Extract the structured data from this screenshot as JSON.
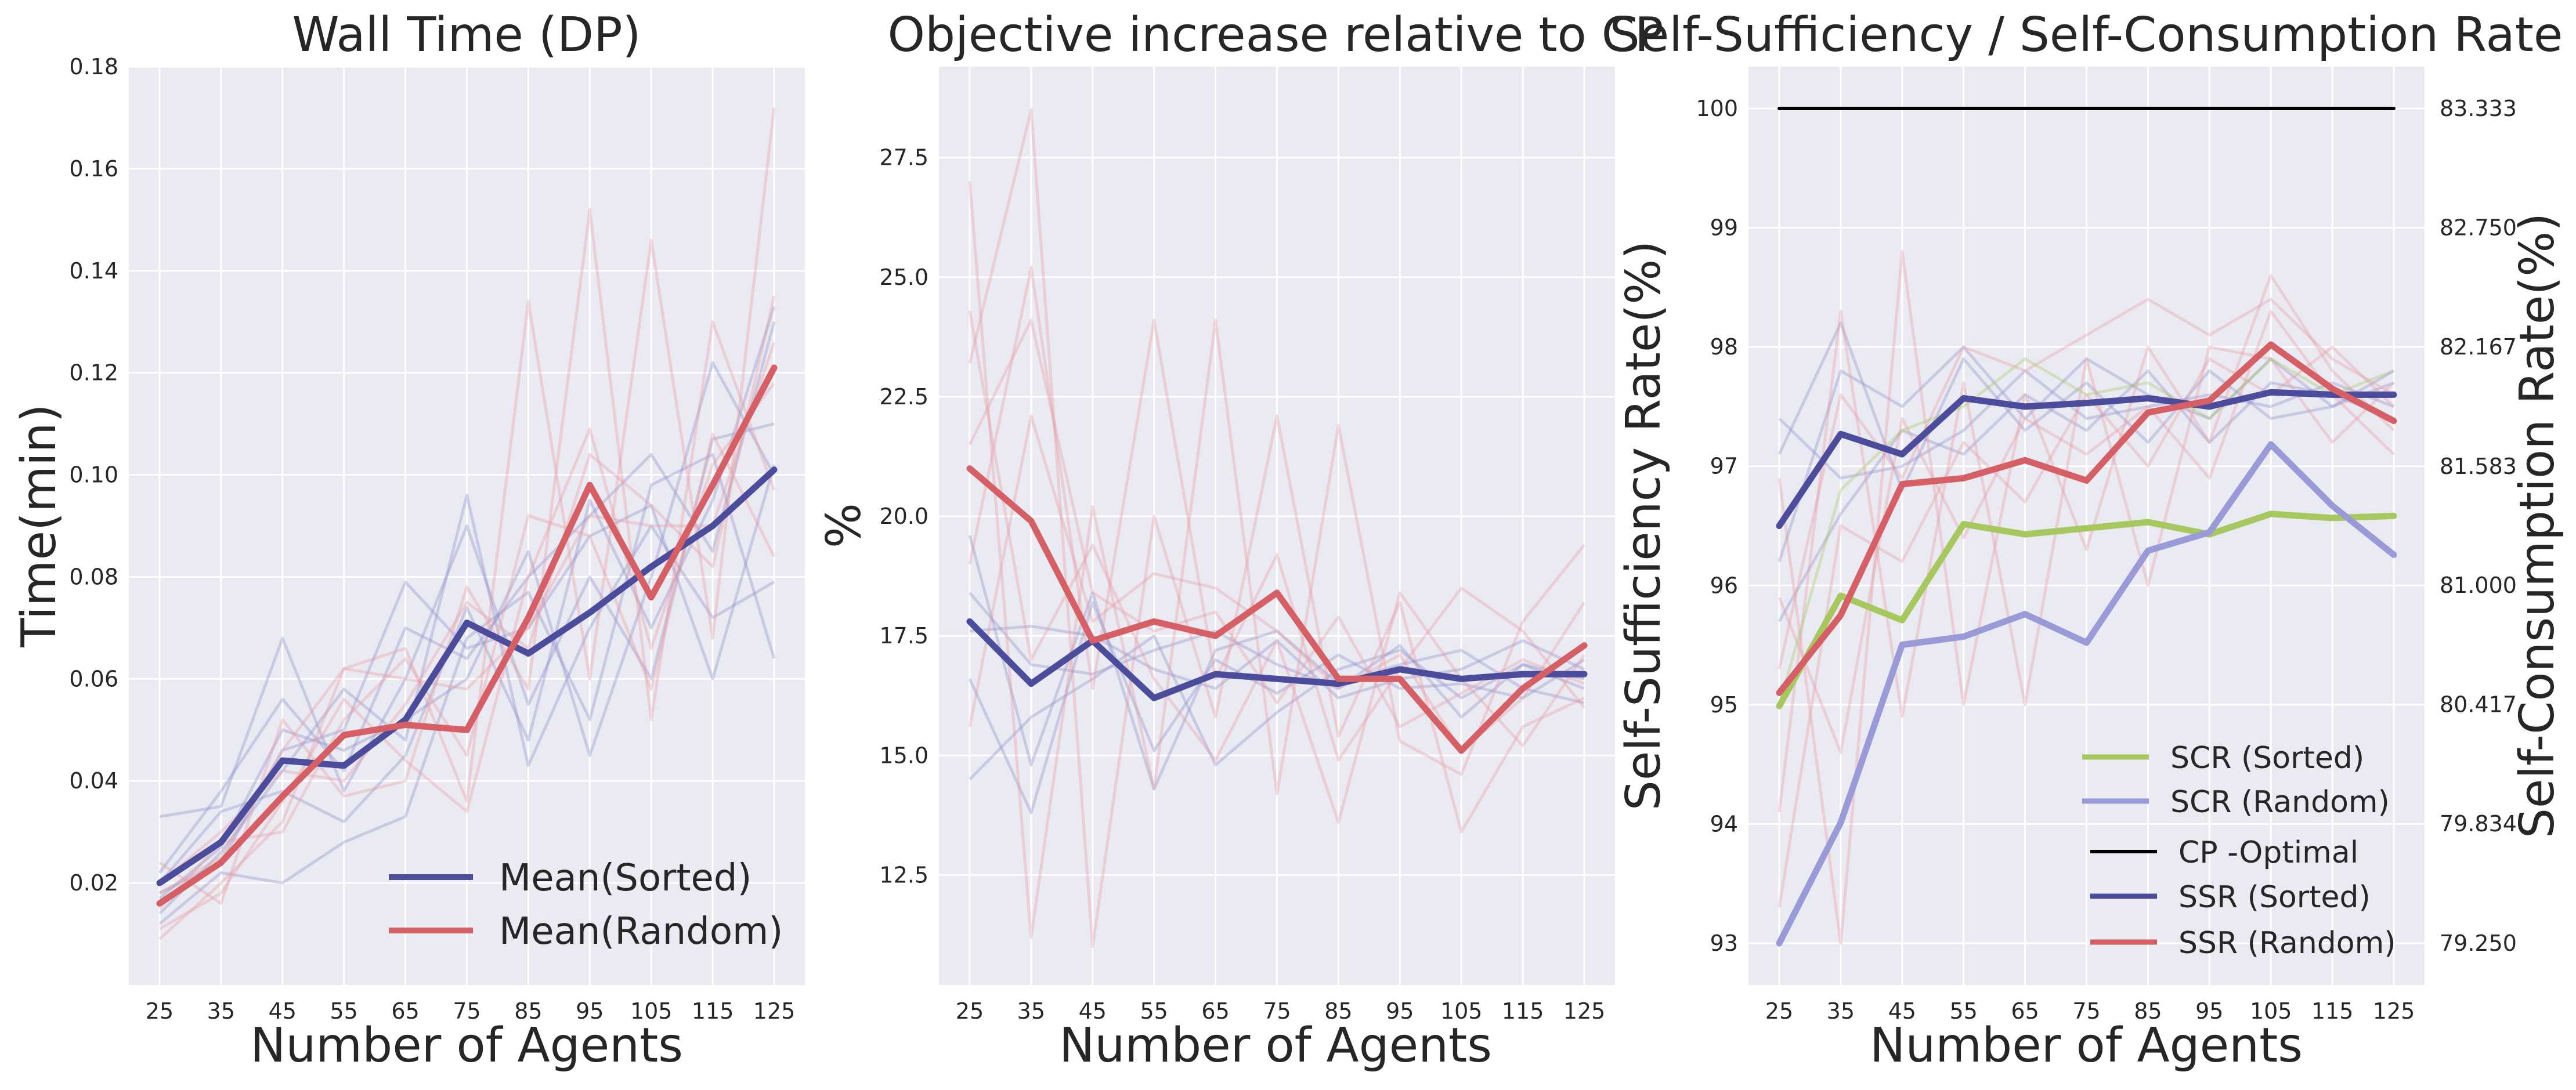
{
  "chart_data": [
    {
      "type": "line",
      "title": "Wall Time (DP)",
      "xlabel": "Number of Agents",
      "ylabel": "Time(min)",
      "x": [
        25,
        35,
        45,
        55,
        65,
        75,
        85,
        95,
        105,
        115,
        125
      ],
      "ylim": [
        0.0,
        0.18
      ],
      "yticks": [
        0.02,
        0.04,
        0.06,
        0.08,
        0.1,
        0.12,
        0.14,
        0.16,
        0.18
      ],
      "ytick_labels": [
        "0.02",
        "0.04",
        "0.06",
        "0.08",
        "0.10",
        "0.12",
        "0.14",
        "0.16",
        "0.18"
      ],
      "grid": true,
      "legend_position": "lower-right",
      "series": [
        {
          "name": "Mean(Sorted)",
          "color": "#4c4c9d",
          "values": [
            0.02,
            0.028,
            0.044,
            0.043,
            0.052,
            0.071,
            0.065,
            0.073,
            0.082,
            0.09,
            0.101
          ]
        },
        {
          "name": "Mean(Random)",
          "color": "#d65f65",
          "values": [
            0.016,
            0.024,
            0.037,
            0.049,
            0.051,
            0.05,
            0.072,
            0.098,
            0.076,
            0.098,
            0.121
          ]
        }
      ],
      "runs": [
        {
          "color": "#8c8cc8",
          "values": [
            0.033,
            0.035,
            0.068,
            0.038,
            0.06,
            0.09,
            0.055,
            0.08,
            0.06,
            0.107,
            0.11
          ]
        },
        {
          "color": "#8c8cc8",
          "values": [
            0.022,
            0.038,
            0.056,
            0.042,
            0.07,
            0.064,
            0.08,
            0.092,
            0.104,
            0.085,
            0.13
          ]
        },
        {
          "color": "#8c8cc8",
          "values": [
            0.014,
            0.026,
            0.042,
            0.058,
            0.048,
            0.096,
            0.043,
            0.07,
            0.09,
            0.072,
            0.079
          ]
        },
        {
          "color": "#8c8cc8",
          "values": [
            0.018,
            0.024,
            0.046,
            0.05,
            0.079,
            0.066,
            0.07,
            0.088,
            0.094,
            0.06,
            0.102
          ]
        },
        {
          "color": "#8c8cc8",
          "values": [
            0.012,
            0.022,
            0.02,
            0.028,
            0.033,
            0.068,
            0.077,
            0.052,
            0.098,
            0.104,
            0.064
          ]
        },
        {
          "color": "#8c8cc8",
          "values": [
            0.017,
            0.027,
            0.05,
            0.046,
            0.052,
            0.06,
            0.085,
            0.045,
            0.08,
            0.122,
            0.1
          ]
        },
        {
          "color": "#8c8cc8",
          "values": [
            0.02,
            0.034,
            0.038,
            0.032,
            0.045,
            0.074,
            0.048,
            0.095,
            0.07,
            0.095,
            0.133
          ]
        },
        {
          "color": "#e89aa4",
          "values": [
            0.009,
            0.02,
            0.032,
            0.062,
            0.066,
            0.036,
            0.134,
            0.06,
            0.146,
            0.068,
            0.172
          ]
        },
        {
          "color": "#e89aa4",
          "values": [
            0.024,
            0.016,
            0.052,
            0.037,
            0.04,
            0.078,
            0.058,
            0.152,
            0.052,
            0.13,
            0.097
          ]
        },
        {
          "color": "#e89aa4",
          "values": [
            0.015,
            0.028,
            0.03,
            0.052,
            0.064,
            0.045,
            0.092,
            0.088,
            0.058,
            0.108,
            0.084
          ]
        },
        {
          "color": "#e89aa4",
          "values": [
            0.02,
            0.03,
            0.042,
            0.04,
            0.055,
            0.075,
            0.066,
            0.104,
            0.094,
            0.082,
            0.135
          ]
        },
        {
          "color": "#e89aa4",
          "values": [
            0.011,
            0.018,
            0.036,
            0.056,
            0.044,
            0.034,
            0.08,
            0.109,
            0.066,
            0.102,
            0.118
          ]
        },
        {
          "color": "#e89aa4",
          "values": [
            0.018,
            0.025,
            0.046,
            0.062,
            0.06,
            0.058,
            0.07,
            0.092,
            0.09,
            0.09,
            0.126
          ]
        }
      ]
    },
    {
      "type": "line",
      "title": "Objective increase relative to CP",
      "xlabel": "Number of Agents",
      "ylabel": "%",
      "x": [
        25,
        35,
        45,
        55,
        65,
        75,
        85,
        95,
        105,
        115,
        125
      ],
      "ylim": [
        10.2,
        29.4
      ],
      "yticks": [
        12.5,
        15.0,
        17.5,
        20.0,
        22.5,
        25.0,
        27.5
      ],
      "ytick_labels": [
        "12.5",
        "15.0",
        "17.5",
        "20.0",
        "22.5",
        "25.0",
        "27.5"
      ],
      "grid": true,
      "series": [
        {
          "name": "Mean(Sorted)",
          "color": "#4c4c9d",
          "values": [
            17.8,
            16.5,
            17.4,
            16.2,
            16.7,
            16.6,
            16.5,
            16.8,
            16.6,
            16.7,
            16.7
          ]
        },
        {
          "name": "Mean(Random)",
          "color": "#d65f65",
          "values": [
            21.0,
            19.9,
            17.4,
            17.8,
            17.5,
            18.4,
            16.6,
            16.6,
            15.1,
            16.4,
            17.3
          ]
        }
      ],
      "runs": [
        {
          "color": "#8c8cc8",
          "values": [
            19.6,
            14.8,
            18.4,
            14.3,
            17.2,
            17.6,
            16.5,
            16.9,
            17.2,
            16.4,
            16.1
          ]
        },
        {
          "color": "#8c8cc8",
          "values": [
            14.5,
            15.8,
            16.6,
            17.5,
            14.8,
            15.9,
            16.8,
            17.2,
            16.2,
            16.9,
            16.6
          ]
        },
        {
          "color": "#8c8cc8",
          "values": [
            17.6,
            17.7,
            17.5,
            16.8,
            16.4,
            17.4,
            16.2,
            16.6,
            16.8,
            17.4,
            16.8
          ]
        },
        {
          "color": "#8c8cc8",
          "values": [
            16.6,
            13.8,
            18.2,
            15.1,
            17.0,
            16.3,
            17.1,
            16.4,
            16.5,
            16.2,
            17.0
          ]
        },
        {
          "color": "#8c8cc8",
          "values": [
            18.4,
            16.9,
            16.7,
            17.2,
            17.6,
            16.9,
            16.4,
            17.3,
            15.8,
            16.9,
            16.4
          ]
        },
        {
          "color": "#e89aa4",
          "values": [
            27.0,
            11.2,
            20.2,
            14.3,
            24.1,
            14.2,
            21.9,
            15.3,
            14.6,
            17.8,
            19.4
          ]
        },
        {
          "color": "#e89aa4",
          "values": [
            23.2,
            28.5,
            11.0,
            20.0,
            15.8,
            22.1,
            15.4,
            18.2,
            13.4,
            15.6,
            16.2
          ]
        },
        {
          "color": "#e89aa4",
          "values": [
            19.0,
            25.2,
            16.4,
            24.1,
            16.6,
            19.2,
            14.9,
            16.8,
            18.5,
            17.6,
            16.0
          ]
        },
        {
          "color": "#e89aa4",
          "values": [
            24.3,
            17.0,
            19.4,
            16.6,
            14.9,
            17.4,
            13.6,
            18.4,
            16.6,
            15.2,
            17.1
          ]
        },
        {
          "color": "#e89aa4",
          "values": [
            21.5,
            24.1,
            18.4,
            17.6,
            18.0,
            16.1,
            17.9,
            15.6,
            16.3,
            17.0,
            16.5
          ]
        },
        {
          "color": "#e89aa4",
          "values": [
            15.6,
            22.1,
            17.8,
            18.8,
            18.5,
            17.6,
            16.4,
            17.1,
            15.1,
            16.2,
            18.2
          ]
        }
      ]
    },
    {
      "type": "line",
      "title": "Self-Sufficiency / Self-Consumption Rate",
      "xlabel": "Number of Agents",
      "ylabel": "Self-Sufficiency Rate(%)",
      "y2label": "Self-Consumption Rate(%)",
      "x": [
        25,
        35,
        45,
        55,
        65,
        75,
        85,
        95,
        105,
        115,
        125
      ],
      "ylim": [
        92.65,
        100.35
      ],
      "yticks": [
        93,
        94,
        95,
        96,
        97,
        98,
        99,
        100
      ],
      "ytick_labels": [
        "93",
        "94",
        "95",
        "96",
        "97",
        "98",
        "99",
        "100"
      ],
      "y2ticks": [
        79.25,
        79.834,
        80.417,
        81.0,
        81.583,
        82.167,
        82.75,
        83.333
      ],
      "y2tick_labels": [
        "79.250",
        "79.834",
        "80.417",
        "81.000",
        "81.583",
        "82.167",
        "82.750",
        "83.333"
      ],
      "y2lim": [
        79.046,
        83.537
      ],
      "grid": true,
      "legend_position": "lower-right",
      "series": [
        {
          "name": "SCR (Sorted)",
          "color": "#a7c85f",
          "axis": "right",
          "values": [
            80.41,
            80.95,
            80.83,
            81.3,
            81.25,
            81.28,
            81.31,
            81.25,
            81.35,
            81.33,
            81.34
          ]
        },
        {
          "name": "SCR (Random)",
          "color": "#9a9ad8",
          "axis": "right",
          "values": [
            79.25,
            79.84,
            80.71,
            80.75,
            80.86,
            80.72,
            81.17,
            81.26,
            81.69,
            81.39,
            81.15
          ]
        },
        {
          "name": "CP -Optimal",
          "color": "#000000",
          "axis": "left",
          "values": [
            100,
            100,
            100,
            100,
            100,
            100,
            100,
            100,
            100,
            100,
            100
          ]
        },
        {
          "name": "SSR (Sorted)",
          "color": "#4c4c9d",
          "axis": "left",
          "values": [
            96.5,
            97.27,
            97.1,
            97.57,
            97.5,
            97.53,
            97.57,
            97.5,
            97.62,
            97.6,
            97.6
          ]
        },
        {
          "name": "SSR (Random)",
          "color": "#d65f65",
          "axis": "left",
          "values": [
            95.1,
            95.75,
            96.85,
            96.9,
            97.05,
            96.88,
            97.45,
            97.55,
            98.02,
            97.65,
            97.38
          ]
        }
      ],
      "runs": [
        {
          "color": "#8c8cc8",
          "values": [
            97.1,
            98.2,
            96.8,
            97.9,
            97.3,
            97.7,
            97.2,
            97.8,
            97.4,
            97.5,
            97.7
          ]
        },
        {
          "color": "#8c8cc8",
          "values": [
            95.7,
            96.6,
            97.3,
            97.1,
            97.6,
            97.3,
            97.8,
            97.2,
            97.7,
            97.6,
            97.4
          ]
        },
        {
          "color": "#8c8cc8",
          "values": [
            96.2,
            97.8,
            97.5,
            98.0,
            97.4,
            97.9,
            97.6,
            97.4,
            97.9,
            97.5,
            97.8
          ]
        },
        {
          "color": "#8c8cc8",
          "values": [
            97.4,
            96.9,
            97.0,
            97.3,
            97.8,
            97.4,
            97.5,
            97.6,
            97.5,
            97.7,
            97.5
          ]
        },
        {
          "color": "#e89aa4",
          "values": [
            96.9,
            93.0,
            98.8,
            95.0,
            97.6,
            96.3,
            98.0,
            97.2,
            98.6,
            97.8,
            97.3
          ]
        },
        {
          "color": "#e89aa4",
          "values": [
            94.1,
            98.3,
            94.9,
            97.7,
            95.0,
            97.9,
            96.0,
            98.0,
            97.9,
            97.2,
            97.7
          ]
        },
        {
          "color": "#e89aa4",
          "values": [
            95.9,
            94.6,
            97.4,
            96.4,
            97.4,
            97.1,
            97.5,
            96.9,
            98.3,
            97.6,
            97.1
          ]
        },
        {
          "color": "#e89aa4",
          "values": [
            93.3,
            96.5,
            96.2,
            97.2,
            96.7,
            97.6,
            97.0,
            97.9,
            97.6,
            98.0,
            97.5
          ]
        },
        {
          "color": "#e89aa4",
          "values": [
            95.3,
            97.6,
            96.9,
            98.0,
            97.8,
            98.1,
            98.4,
            98.1,
            98.4,
            97.9,
            97.6
          ]
        },
        {
          "color": "#a7c85f",
          "values": [
            95.0,
            96.8,
            97.3,
            97.5,
            97.9,
            97.6,
            97.7,
            97.4,
            97.9,
            97.6,
            97.8
          ]
        }
      ]
    }
  ]
}
